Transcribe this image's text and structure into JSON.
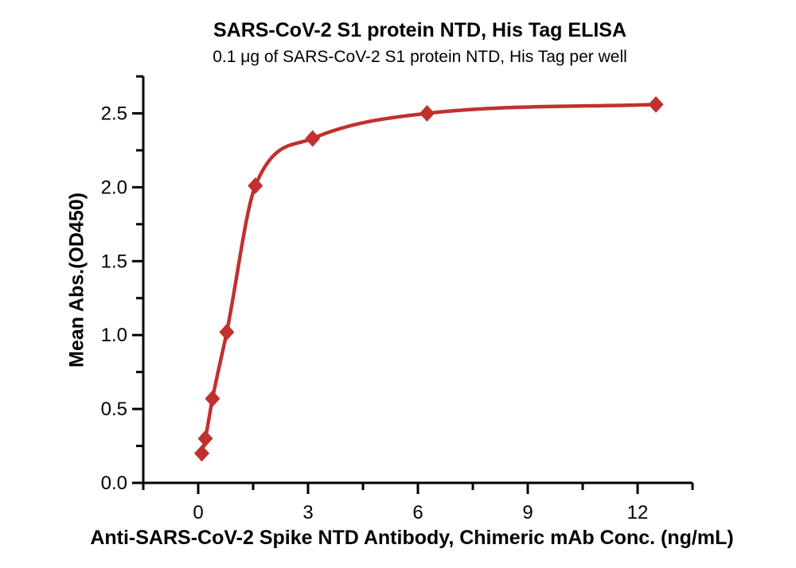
{
  "title": "SARS-CoV-2 S1 protein NTD, His Tag ELISA",
  "subtitle": "0.1 μg of SARS-CoV-2 S1 protein NTD, His Tag per well",
  "chart_data": {
    "type": "scatter",
    "title": "SARS-CoV-2 S1 protein NTD, His Tag ELISA",
    "subtitle": "0.1 μg of SARS-CoV-2 S1 protein NTD, His Tag per well",
    "xlabel": "Anti-SARS-CoV-2 Spike NTD Antibody, Chimeric mAb Conc. (ng/mL)",
    "ylabel": "Mean Abs.(OD450)",
    "x": [
      0.098,
      0.195,
      0.39,
      0.78,
      1.56,
      3.125,
      6.25,
      12.5
    ],
    "y": [
      0.2,
      0.3,
      0.57,
      1.02,
      2.01,
      2.33,
      2.5,
      2.56
    ],
    "curve": "4PL sigmoidal fit through points",
    "marker": "diamond",
    "series_color": "#C0312E",
    "axis_color": "#000000",
    "grid": false,
    "legend": "none",
    "xlim": [
      -1.5,
      13.5
    ],
    "ylim": [
      0,
      2.75
    ],
    "x_major_ticks": [
      0,
      3,
      6,
      9,
      12
    ],
    "x_tick_labels": [
      "0",
      "3",
      "6",
      "9",
      "12"
    ],
    "x_minor_ticks": [
      -1.5,
      1.5,
      4.5,
      7.5,
      10.5,
      13.5
    ],
    "y_major_ticks": [
      0.0,
      0.5,
      1.0,
      1.5,
      2.0,
      2.5
    ],
    "y_tick_labels": [
      "0.0",
      "0.5",
      "1.0",
      "1.5",
      "2.0",
      "2.5"
    ],
    "y_minor_ticks": [
      0.25,
      0.75,
      1.25,
      1.75,
      2.25,
      2.75
    ]
  }
}
